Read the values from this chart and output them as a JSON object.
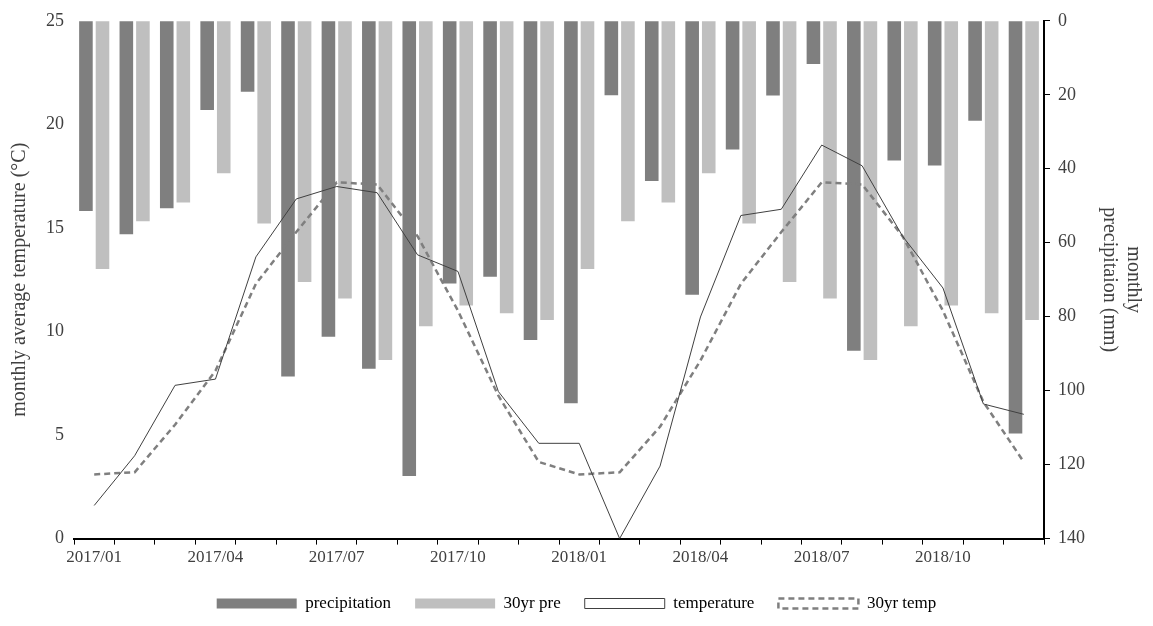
{
  "chart_data": {
    "type": "bar",
    "categories": [
      "2017/01",
      null,
      null,
      "2017/04",
      null,
      null,
      "2017/07",
      null,
      null,
      "2017/10",
      null,
      null,
      "2018/01",
      null,
      null,
      "2018/04",
      null,
      null,
      "2018/07",
      null,
      null,
      "2018/10",
      null,
      null
    ],
    "series": [
      {
        "name": "precipitation",
        "type": "bar",
        "axis": "y2",
        "color": "#7f7f7f",
        "values": [
          51.4,
          57.7,
          50.7,
          24.1,
          19.2,
          96.2,
          85.4,
          94.1,
          123.1,
          71.0,
          69.2,
          86.3,
          103.4,
          20.1,
          43.3,
          74.1,
          34.8,
          20.2,
          11.7,
          89.2,
          37.8,
          39.1,
          27.0,
          111.6
        ]
      },
      {
        "name": "30yr pre",
        "type": "bar",
        "axis": "y2",
        "color": "#bfbfbf",
        "values": [
          67.1,
          54.2,
          49.1,
          41.2,
          54.8,
          70.6,
          75.1,
          91.7,
          82.6,
          77.0,
          79.1,
          80.9,
          67.1,
          54.2,
          49.1,
          41.2,
          54.8,
          70.6,
          75.1,
          91.7,
          82.6,
          77.0,
          79.1,
          80.9
        ]
      },
      {
        "name": "temperature",
        "type": "line",
        "color": "#404040",
        "line_style": "solid",
        "values": [
          1.6,
          4.0,
          7.4,
          7.7,
          13.6,
          16.4,
          17.0,
          16.7,
          13.7,
          12.9,
          7.1,
          4.6,
          4.6,
          0,
          3.5,
          10.7,
          15.6,
          15.9,
          19.0,
          18.0,
          14.6,
          12.1,
          6.5,
          6.0
        ]
      },
      {
        "name": "30yr temp",
        "type": "line",
        "color": "#7f7f7f",
        "line_style": "dashed",
        "values": [
          3.1,
          3.2,
          5.5,
          8.1,
          12.3,
          14.8,
          17.2,
          17.1,
          14.6,
          11.0,
          6.9,
          3.7,
          3.1,
          3.2,
          5.4,
          8.6,
          12.3,
          14.8,
          17.2,
          17.1,
          14.6,
          11.0,
          6.6,
          3.7
        ]
      }
    ],
    "ylabel": "monthly average temperature (°C)",
    "y2label": "monthly\nprecipitaion (mm)",
    "ylim": [
      0,
      25
    ],
    "yticks": [
      0,
      5,
      10,
      15,
      20,
      25
    ],
    "y2lim": [
      140,
      0
    ],
    "y2ticks": [
      0,
      20,
      40,
      60,
      80,
      100,
      120,
      140
    ],
    "marker": "none",
    "grid": false,
    "legend": "bottom"
  }
}
